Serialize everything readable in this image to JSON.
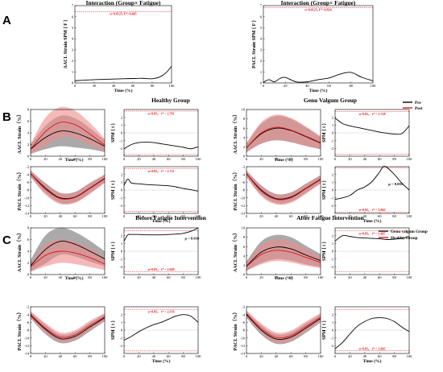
{
  "figure": {
    "panel_letters": [
      "A",
      "B",
      "C"
    ],
    "section_titles": {
      "healthy": "Healthy Group",
      "genu_valgum": "Genu Valgum Group",
      "before": "Before Fatigue Intervention",
      "after": "After Fatigue Intervention"
    },
    "legends": {
      "B": [
        {
          "label": "Pre",
          "color": "#000000"
        },
        {
          "label": "Post",
          "color": "#e0151b"
        }
      ],
      "C": [
        {
          "label": "Genu valgum Group",
          "color": "#000000"
        },
        {
          "label": "Healthy Group",
          "color": "#e0151b"
        }
      ]
    },
    "colors": {
      "black": "#000000",
      "red": "#e0151b",
      "gray_band": "#8e8e8e",
      "red_band": "#f08a8a"
    }
  },
  "chart_data": [
    {
      "id": "A-aacl",
      "type": "line",
      "title": "Interaction (Group× Fatigue)",
      "ylabel": "AACL Strain SPM { F }",
      "xlabel": "Time (%)",
      "xlim": [
        0,
        100
      ],
      "ylim": [
        0,
        7
      ],
      "xticks": [
        0,
        20,
        40,
        60,
        80,
        100
      ],
      "yticks": [
        0,
        1,
        2,
        3,
        4,
        5,
        6,
        7
      ],
      "threshold": 6.465,
      "threshold_label": "α=0.0125,   F*=6.465",
      "x": [
        0,
        10,
        20,
        30,
        40,
        50,
        60,
        70,
        80,
        88,
        94,
        100
      ],
      "y": [
        0.2,
        0.25,
        0.3,
        0.32,
        0.35,
        0.38,
        0.4,
        0.42,
        0.38,
        0.55,
        0.9,
        1.5
      ]
    },
    {
      "id": "A-pacl",
      "type": "line",
      "title": "Interaction (Group× Fatigue)",
      "ylabel": "PACL Strain SPM { F }",
      "xlabel": "Time (%)",
      "xlim": [
        0,
        100
      ],
      "ylim": [
        0,
        7
      ],
      "xticks": [
        0,
        20,
        40,
        60,
        80,
        100
      ],
      "yticks": [
        0,
        1,
        2,
        3,
        4,
        5,
        6,
        7
      ],
      "threshold": 6.824,
      "threshold_label": "α=0.0125,   F*=6.824",
      "x": [
        0,
        5,
        10,
        15,
        20,
        30,
        40,
        50,
        60,
        70,
        80,
        90,
        100
      ],
      "y": [
        0.05,
        0.3,
        0.1,
        0.4,
        0.5,
        0.1,
        0.1,
        0.3,
        0.45,
        0.8,
        0.95,
        0.5,
        0.2
      ]
    },
    {
      "id": "B-h-aacl",
      "type": "area",
      "ylabel": "AACL Strain（%）",
      "xlabel": "",
      "xlim": [
        0,
        100
      ],
      "ylim": [
        0,
        8
      ],
      "xticks": [
        0,
        20,
        40,
        60,
        80,
        100
      ],
      "yticks": [
        0,
        2,
        4,
        6,
        8
      ],
      "x": [
        0,
        20,
        40,
        60,
        80,
        100
      ],
      "series": [
        {
          "mean": [
            1.2,
            3.2,
            4.3,
            4.0,
            3.0,
            1.7
          ],
          "sd": [
            0.8,
            2.0,
            2.6,
            2.5,
            1.8,
            1.0
          ]
        },
        {
          "mean": [
            1.2,
            4.2,
            5.8,
            5.4,
            3.8,
            1.9
          ],
          "sd": [
            0.9,
            2.4,
            2.6,
            2.4,
            1.9,
            1.1
          ]
        }
      ]
    },
    {
      "id": "B-h-spm1",
      "type": "line",
      "ylabel": "SPM { t }",
      "xlabel": "",
      "xlim": [
        0,
        100
      ],
      "ylim": [
        -3,
        3
      ],
      "xticks": [
        0,
        20,
        40,
        60,
        80,
        100
      ],
      "yticks": [
        -2,
        -1,
        0,
        1,
        2
      ],
      "threshold": 2.791,
      "threshold_label": "α=0.05，  t* = 2.791",
      "x": [
        0,
        10,
        20,
        30,
        40,
        50,
        60,
        70,
        80,
        90,
        100
      ],
      "y": [
        -2.05,
        -1.5,
        -1.25,
        -1.2,
        -1.25,
        -1.4,
        -1.55,
        -1.7,
        -1.85,
        -2.05,
        -1.8
      ]
    },
    {
      "id": "B-h-pacl",
      "type": "area",
      "ylabel": "PACL Strain（%）",
      "xlabel": "",
      "xlim": [
        0,
        100
      ],
      "ylim": [
        -14,
        -2
      ],
      "xticks": [
        0,
        20,
        40,
        60,
        80,
        100
      ],
      "yticks": [
        -14,
        -12,
        -10,
        -8,
        -6,
        -4,
        -2
      ],
      "x": [
        0,
        20,
        40,
        60,
        80,
        100
      ],
      "series": [
        {
          "mean": [
            -3.8,
            -7.5,
            -10.0,
            -9.8,
            -7.5,
            -5.0
          ],
          "sd": [
            0.8,
            1.3,
            1.3,
            1.3,
            1.3,
            1.0
          ]
        },
        {
          "mean": [
            -3.8,
            -7.8,
            -10.2,
            -9.9,
            -7.6,
            -5.1
          ],
          "sd": [
            0.9,
            1.4,
            1.4,
            1.4,
            1.4,
            1.1
          ]
        }
      ]
    },
    {
      "id": "B-h-spm2",
      "type": "line",
      "ylabel": "SPM { t }",
      "xlabel": "Time (%)",
      "xlim": [
        0,
        100
      ],
      "ylim": [
        -3,
        3
      ],
      "xticks": [
        0,
        20,
        40,
        60,
        80,
        100
      ],
      "yticks": [
        -2,
        -1,
        0,
        1,
        2
      ],
      "threshold": 2.721,
      "threshold_label": "α=0.05，  t* = 2.721",
      "x": [
        0,
        5,
        10,
        20,
        30,
        40,
        50,
        60,
        70,
        80,
        90,
        100
      ],
      "y": [
        0.6,
        1.4,
        0.9,
        0.8,
        0.7,
        0.65,
        0.6,
        0.55,
        0.4,
        0.2,
        0.05,
        -0.15
      ]
    },
    {
      "id": "B-h-xlabel",
      "type": "table",
      "xlabel": "Time (%)"
    },
    {
      "id": "B-g-aacl",
      "type": "area",
      "ylabel": "AACL Strain（%）",
      "xlabel": "",
      "xlim": [
        0,
        100
      ],
      "ylim": [
        0,
        10
      ],
      "xticks": [
        0,
        20,
        40,
        60,
        80,
        100
      ],
      "yticks": [
        0,
        2,
        4,
        6,
        8,
        10
      ],
      "x": [
        0,
        20,
        40,
        60,
        80,
        100
      ],
      "series": [
        {
          "mean": [
            1.8,
            4.8,
            6.0,
            5.5,
            4.2,
            2.8
          ],
          "sd": [
            0.9,
            2.1,
            2.6,
            2.5,
            2.0,
            1.3
          ]
        },
        {
          "mean": [
            1.8,
            5.0,
            6.2,
            5.6,
            4.3,
            2.9
          ],
          "sd": [
            1.0,
            2.3,
            2.7,
            2.6,
            2.1,
            1.4
          ]
        }
      ]
    },
    {
      "id": "B-g-spm1",
      "type": "line",
      "ylabel": "SPM { t }",
      "xlabel": "",
      "xlim": [
        0,
        100
      ],
      "ylim": [
        -3,
        3
      ],
      "xticks": [
        0,
        20,
        40,
        60,
        80,
        100
      ],
      "yticks": [
        -2,
        -1,
        0,
        1,
        2
      ],
      "threshold": 2.728,
      "threshold_label": "α=0.05，  t* = 2.728",
      "x": [
        0,
        10,
        20,
        30,
        40,
        50,
        60,
        70,
        80,
        90,
        100
      ],
      "y": [
        1.9,
        1.2,
        0.9,
        0.7,
        0.5,
        0.3,
        0.1,
        -0.05,
        -0.15,
        -0.1,
        0.9
      ]
    },
    {
      "id": "B-g-pacl",
      "type": "area",
      "ylabel": "PACL Strain（%）",
      "xlabel": "",
      "xlim": [
        0,
        100
      ],
      "ylim": [
        -14,
        -2
      ],
      "xticks": [
        0,
        20,
        40,
        60,
        80,
        100
      ],
      "yticks": [
        -14,
        -12,
        -10,
        -8,
        -6,
        -4,
        -2
      ],
      "x": [
        0,
        20,
        40,
        60,
        80,
        100
      ],
      "series": [
        {
          "mean": [
            -3.8,
            -8.0,
            -10.2,
            -9.8,
            -7.6,
            -5.2
          ],
          "sd": [
            0.8,
            1.2,
            1.2,
            1.2,
            1.2,
            1.0
          ]
        },
        {
          "mean": [
            -3.8,
            -8.3,
            -10.4,
            -10.0,
            -7.7,
            -5.3
          ],
          "sd": [
            0.9,
            1.3,
            1.3,
            1.3,
            1.3,
            1.1
          ]
        }
      ]
    },
    {
      "id": "B-g-spm2",
      "type": "line",
      "ylabel": "SPM { t }",
      "xlabel": "Time (%)",
      "xlim": [
        0,
        100
      ],
      "ylim": [
        -3,
        3
      ],
      "xticks": [
        0,
        20,
        40,
        60,
        80,
        100
      ],
      "yticks": [
        -2,
        -1,
        0,
        1,
        2
      ],
      "threshold": 2.862,
      "threshold_label": "α=0.05，  t* = 2.862",
      "annotation": "p = 0.005",
      "x": [
        0,
        10,
        20,
        30,
        40,
        50,
        60,
        65,
        70,
        80,
        90,
        100
      ],
      "y": [
        -1.2,
        -1.0,
        -0.7,
        0.0,
        0.4,
        1.1,
        2.3,
        3.1,
        2.9,
        2.0,
        0.9,
        0.0
      ]
    },
    {
      "id": "B-g-xlabel",
      "type": "table",
      "xlabel": "Time (%)"
    },
    {
      "id": "C-b-aacl",
      "type": "area",
      "ylabel": "AACL Strain（%）",
      "xlabel": "",
      "xlim": [
        0,
        100
      ],
      "ylim": [
        0,
        8
      ],
      "xticks": [
        0,
        20,
        40,
        60,
        80,
        100
      ],
      "yticks": [
        0,
        2,
        4,
        6,
        8
      ],
      "x": [
        0,
        20,
        40,
        60,
        80,
        100
      ],
      "series": [
        {
          "mean": [
            1.5,
            4.3,
            5.7,
            5.2,
            4.0,
            2.7
          ],
          "sd": [
            1.0,
            2.4,
            2.3,
            2.1,
            1.8,
            1.3
          ]
        },
        {
          "mean": [
            1.3,
            3.3,
            4.0,
            3.7,
            2.9,
            1.8
          ],
          "sd": [
            0.8,
            1.9,
            2.0,
            1.9,
            1.6,
            1.0
          ]
        }
      ]
    },
    {
      "id": "C-b-spm1",
      "type": "line",
      "ylabel": "SPM { t }",
      "xlabel": "",
      "xlim": [
        0,
        100
      ],
      "ylim": [
        -3,
        3
      ],
      "xticks": [
        0,
        20,
        40,
        60,
        80,
        100
      ],
      "yticks": [
        -2,
        -1,
        0,
        1,
        2
      ],
      "threshold": 2.649,
      "threshold_label": "α=0.05，  t* = 2.649",
      "annotation": "p = 0.036",
      "x": [
        0,
        5,
        10,
        20,
        30,
        40,
        50,
        60,
        70,
        80,
        90,
        100
      ],
      "y": [
        1.3,
        2.1,
        2.15,
        2.15,
        2.1,
        2.1,
        2.1,
        2.15,
        2.2,
        2.3,
        2.55,
        3.0
      ]
    },
    {
      "id": "C-b-pacl",
      "type": "area",
      "ylabel": "PACL Strain（%）",
      "xlabel": "",
      "xlim": [
        0,
        100
      ],
      "ylim": [
        -14,
        -2
      ],
      "xticks": [
        0,
        20,
        40,
        60,
        80,
        100
      ],
      "yticks": [
        -14,
        -12,
        -10,
        -8,
        -6,
        -4,
        -2
      ],
      "x": [
        0,
        20,
        40,
        60,
        80,
        100
      ],
      "series": [
        {
          "mean": [
            -4.2,
            -7.8,
            -10.2,
            -9.6,
            -7.2,
            -4.8
          ],
          "sd": [
            0.8,
            1.2,
            1.1,
            1.1,
            1.1,
            0.9
          ]
        },
        {
          "mean": [
            -4.0,
            -7.5,
            -9.8,
            -9.2,
            -6.8,
            -4.6
          ],
          "sd": [
            0.9,
            1.3,
            1.2,
            1.2,
            1.2,
            1.0
          ]
        }
      ]
    },
    {
      "id": "C-b-spm2",
      "type": "line",
      "ylabel": "SPM { t }",
      "xlabel": "Time (%)",
      "xlim": [
        0,
        100
      ],
      "ylim": [
        -3,
        3
      ],
      "xticks": [
        0,
        20,
        40,
        60,
        80,
        100
      ],
      "yticks": [
        -2,
        -1,
        0,
        1,
        2
      ],
      "threshold": 2.676,
      "threshold_label": "α=0.05，  t* = 2.676",
      "x": [
        0,
        10,
        20,
        30,
        40,
        50,
        60,
        70,
        80,
        90,
        100
      ],
      "y": [
        -1.3,
        -0.8,
        -0.2,
        0.3,
        0.7,
        1.0,
        1.4,
        1.8,
        2.0,
        1.8,
        1.0
      ]
    },
    {
      "id": "C-b-xlabel",
      "type": "table",
      "xlabel": "Time (%)"
    },
    {
      "id": "C-a-aacl",
      "type": "area",
      "ylabel": "AACL Strain（%）",
      "xlabel": "",
      "xlim": [
        0,
        100
      ],
      "ylim": [
        0,
        10
      ],
      "xticks": [
        0,
        20,
        40,
        60,
        80,
        100
      ],
      "yticks": [
        0,
        2,
        4,
        6,
        8,
        10
      ],
      "x": [
        0,
        20,
        40,
        60,
        80,
        100
      ],
      "series": [
        {
          "mean": [
            1.8,
            4.8,
            5.9,
            5.5,
            4.2,
            3.0
          ],
          "sd": [
            1.0,
            2.3,
            2.6,
            2.5,
            2.0,
            1.4
          ]
        },
        {
          "mean": [
            1.7,
            4.3,
            5.2,
            4.8,
            3.7,
            2.6
          ],
          "sd": [
            0.9,
            2.1,
            2.3,
            2.2,
            1.8,
            1.2
          ]
        }
      ]
    },
    {
      "id": "C-a-spm1",
      "type": "line",
      "ylabel": "SPM { t }",
      "xlabel": "",
      "xlim": [
        0,
        100
      ],
      "ylim": [
        -3,
        3
      ],
      "xticks": [
        0,
        20,
        40,
        60,
        80,
        100
      ],
      "yticks": [
        -2,
        -1,
        0,
        1,
        2
      ],
      "threshold": 2.607,
      "threshold_label": "α=0.05，  t* = 2.607",
      "x": [
        0,
        10,
        20,
        30,
        40,
        50,
        60,
        70,
        80,
        90,
        100
      ],
      "y": [
        1.3,
        2.0,
        1.9,
        1.75,
        1.7,
        1.65,
        1.6,
        1.5,
        1.55,
        1.65,
        1.9
      ]
    },
    {
      "id": "C-a-pacl",
      "type": "area",
      "ylabel": "PACL Strain（%）",
      "xlabel": "",
      "xlim": [
        0,
        100
      ],
      "ylim": [
        -14,
        -2
      ],
      "xticks": [
        0,
        20,
        40,
        60,
        80,
        100
      ],
      "yticks": [
        -14,
        -12,
        -10,
        -8,
        -6,
        -4,
        -2
      ],
      "x": [
        0,
        20,
        40,
        60,
        80,
        100
      ],
      "series": [
        {
          "mean": [
            -4.0,
            -8.0,
            -10.3,
            -9.8,
            -7.5,
            -5.0
          ],
          "sd": [
            0.8,
            1.2,
            1.2,
            1.2,
            1.2,
            1.0
          ]
        },
        {
          "mean": [
            -3.8,
            -7.6,
            -9.9,
            -9.4,
            -7.1,
            -4.7
          ],
          "sd": [
            0.9,
            1.3,
            1.3,
            1.3,
            1.3,
            1.1
          ]
        }
      ]
    },
    {
      "id": "C-a-spm2",
      "type": "line",
      "ylabel": "SPM { t }",
      "xlabel": "Time (%)",
      "xlim": [
        0,
        100
      ],
      "ylim": [
        -3,
        3
      ],
      "xticks": [
        0,
        20,
        40,
        60,
        80,
        100
      ],
      "yticks": [
        -2,
        -1,
        0,
        1,
        2
      ],
      "threshold": 2.665,
      "threshold_label": "α=0.05，  t* = 2.665",
      "x": [
        0,
        10,
        20,
        30,
        40,
        50,
        60,
        70,
        80,
        90,
        100
      ],
      "y": [
        -2.4,
        -1.6,
        -0.5,
        0.5,
        1.1,
        1.5,
        1.6,
        1.5,
        1.1,
        0.4,
        -0.2
      ]
    },
    {
      "id": "C-a-xlabel",
      "type": "table",
      "xlabel": "Time (%)"
    }
  ]
}
